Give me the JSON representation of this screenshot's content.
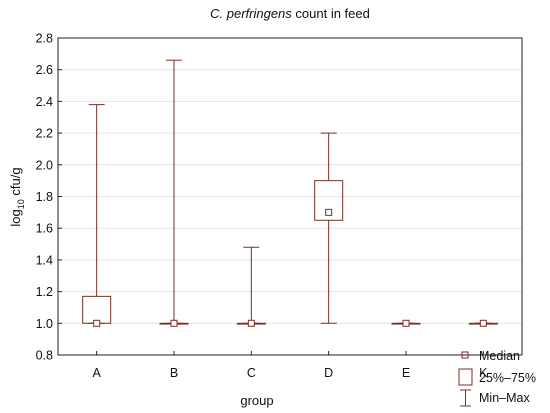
{
  "chart_data": {
    "type": "boxplot",
    "title_italic": "C. perfringens",
    "title_rest": " count in feed",
    "xlabel": "group",
    "ylabel_base": "log",
    "ylabel_sub": "10",
    "ylabel_rest": " cfu/g",
    "ylim": [
      0.8,
      2.8
    ],
    "yticks": [
      "0.8",
      "1.0",
      "1.2",
      "1.4",
      "1.6",
      "1.8",
      "2.0",
      "2.2",
      "2.4",
      "2.6",
      "2.8"
    ],
    "grid": true,
    "legend_position": "bottom-right",
    "legend": {
      "median": "Median",
      "box": "25%–75%",
      "whisker": "Min–Max"
    },
    "colors": {
      "marks": "#7a2e24",
      "grid": "#e6e6e6",
      "axis": "#222222"
    },
    "categories": [
      "A",
      "B",
      "C",
      "D",
      "E",
      "K"
    ],
    "series": [
      {
        "group": "A",
        "min": 1.0,
        "q1": 1.0,
        "median": 1.0,
        "q3": 1.17,
        "max": 2.38
      },
      {
        "group": "B",
        "min": 1.0,
        "q1": 1.0,
        "median": 1.0,
        "q3": 1.0,
        "max": 2.66
      },
      {
        "group": "C",
        "min": 1.0,
        "q1": 1.0,
        "median": 1.0,
        "q3": 1.0,
        "max": 1.48
      },
      {
        "group": "D",
        "min": 1.0,
        "q1": 1.65,
        "median": 1.7,
        "q3": 1.9,
        "max": 2.2
      },
      {
        "group": "E",
        "min": 1.0,
        "q1": 1.0,
        "median": 1.0,
        "q3": 1.0,
        "max": 1.0
      },
      {
        "group": "K",
        "min": 1.0,
        "q1": 1.0,
        "median": 1.0,
        "q3": 1.0,
        "max": 1.0
      }
    ]
  }
}
